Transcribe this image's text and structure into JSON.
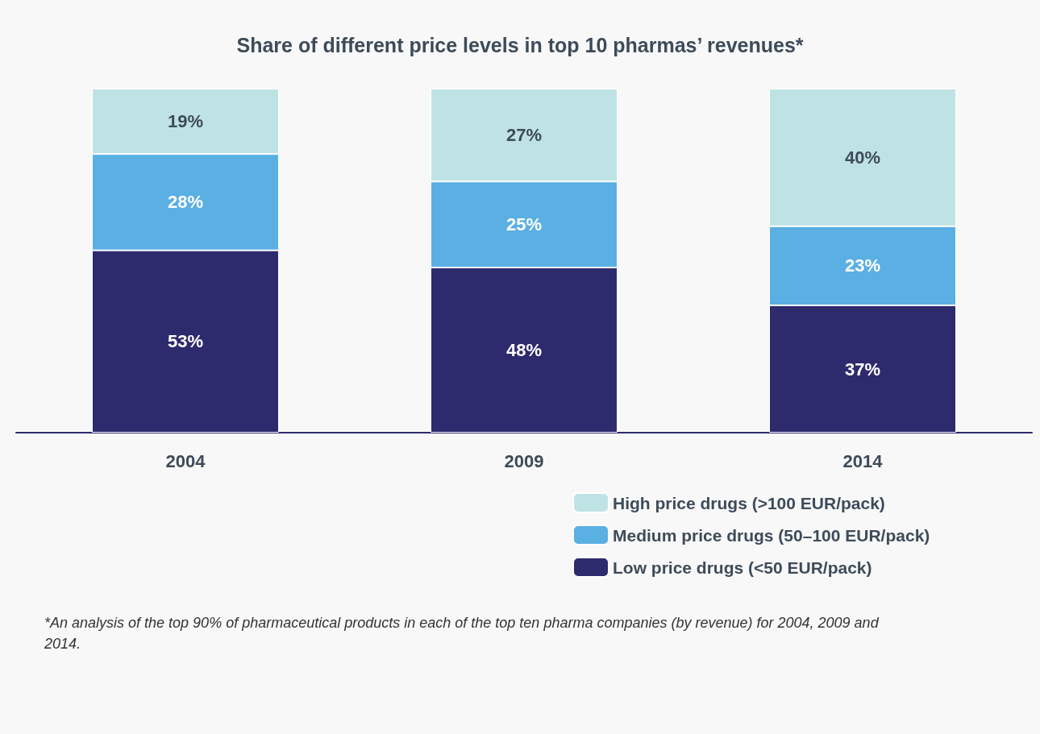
{
  "chart_data": {
    "type": "bar",
    "title": "Share of different price levels in top 10 pharmas’ revenues*",
    "categories": [
      "2004",
      "2009",
      "2014"
    ],
    "stacked": true,
    "tick_labels": "x",
    "data_labels": true,
    "legend": "bottom right",
    "series": [
      {
        "name": "Low price drugs (<50 EUR/pack)",
        "color": "#2e2a6e",
        "values": [
          53,
          48,
          37
        ],
        "value_labels": [
          "53%",
          "48%",
          "37%"
        ]
      },
      {
        "name": "Medium price drugs (50–100 EUR/pack)",
        "color": "#5aafe3",
        "values": [
          28,
          25,
          23
        ],
        "value_labels": [
          "28%",
          "25%",
          "23%"
        ]
      },
      {
        "name": "High price drugs (>100 EUR/pack)",
        "color": "#bfe3e4",
        "values": [
          19,
          27,
          40
        ],
        "value_labels": [
          "19%",
          "27%",
          "40%"
        ]
      }
    ],
    "annotations": [
      "*An analysis of the top 90% of pharmaceutical products in each of the top ten pharma companies (by revenue) for 2004, 2009 and 2014."
    ]
  }
}
